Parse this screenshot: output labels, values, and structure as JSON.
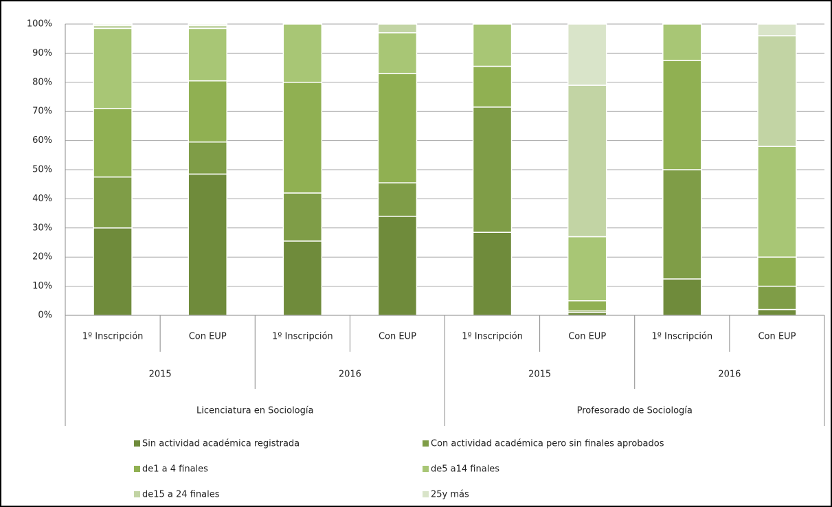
{
  "chart_data": {
    "type": "stacked_bar",
    "categories": [
      "1º Inscripción",
      "Con EUP",
      "1º Inscripción",
      "Con EUP",
      "1º Inscripción",
      "Con EUP",
      "1º Inscripción",
      "Con EUP"
    ],
    "year_groups": [
      "2015",
      "2016",
      "2015",
      "2016"
    ],
    "programs": [
      "Licenciatura en Sociología",
      "Profesorado de Sociología"
    ],
    "series": [
      {
        "name": "Sin actividad académica registrada",
        "color": "#6f8b3b",
        "values": [
          30,
          48.5,
          25.5,
          34,
          28.5,
          1,
          12.5,
          2
        ]
      },
      {
        "name": "Con actividad académica pero sin finales aprobados",
        "color": "#7f9d47",
        "values": [
          17.5,
          11,
          16.5,
          11.5,
          43,
          0.5,
          37.5,
          8
        ]
      },
      {
        "name": "de1 a 4 finales",
        "color": "#90b052",
        "values": [
          23.5,
          21,
          38,
          37.5,
          14,
          3.5,
          37.5,
          10
        ]
      },
      {
        "name": "de5 a14 finales",
        "color": "#a8c675",
        "values": [
          27.5,
          18,
          20,
          14,
          14.5,
          22,
          12.5,
          38
        ]
      },
      {
        "name": "de15 a 24 finales",
        "color": "#c2d4a4",
        "values": [
          1,
          1,
          0,
          3,
          0,
          52,
          0,
          38
        ]
      },
      {
        "name": "25y más",
        "color": "#d9e4c9",
        "values": [
          0.5,
          0.5,
          0,
          0,
          0,
          21,
          0,
          4
        ]
      }
    ],
    "ylim": [
      0,
      100
    ],
    "yticks": [
      {
        "value": 0,
        "label": "0%"
      },
      {
        "value": 10,
        "label": "10%"
      },
      {
        "value": 20,
        "label": "20%"
      },
      {
        "value": 30,
        "label": "30%"
      },
      {
        "value": 40,
        "label": "40%"
      },
      {
        "value": 50,
        "label": "50%"
      },
      {
        "value": 60,
        "label": "60%"
      },
      {
        "value": 70,
        "label": "70%"
      },
      {
        "value": 80,
        "label": "80%"
      },
      {
        "value": 90,
        "label": "90%"
      },
      {
        "value": 100,
        "label": "100%"
      }
    ],
    "grid": true
  }
}
